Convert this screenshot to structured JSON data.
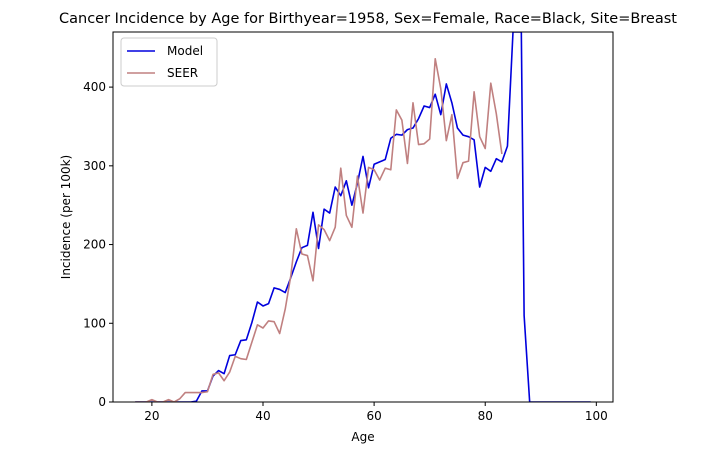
{
  "chart_data": {
    "type": "line",
    "title": "Cancer Incidence by Age for Birthyear=1958, Sex=Female, Race=Black, Site=Breast",
    "xlabel": "Age",
    "ylabel": "Incidence (per 100k)",
    "xlim": [
      13,
      103
    ],
    "ylim": [
      0,
      470
    ],
    "xticks": [
      20,
      40,
      60,
      80,
      100
    ],
    "yticks": [
      0,
      100,
      200,
      300,
      400
    ],
    "grid": false,
    "legend": "top-left",
    "series": [
      {
        "name": "Model",
        "color": "#0000dd",
        "x": [
          17,
          18,
          19,
          20,
          21,
          22,
          23,
          24,
          25,
          26,
          27,
          28,
          29,
          30,
          31,
          32,
          33,
          34,
          35,
          36,
          37,
          38,
          39,
          40,
          41,
          42,
          43,
          44,
          45,
          46,
          47,
          48,
          49,
          50,
          51,
          52,
          53,
          54,
          55,
          56,
          57,
          58,
          59,
          60,
          61,
          62,
          63,
          64,
          65,
          66,
          67,
          68,
          69,
          70,
          71,
          72,
          73,
          74,
          75,
          76,
          77,
          78,
          79,
          80,
          81,
          82,
          83,
          84,
          85,
          85.5,
          86,
          86.5,
          87,
          88,
          89,
          90,
          91,
          92,
          93,
          94,
          95,
          96,
          97,
          98,
          99
        ],
        "values": [
          0,
          0,
          0,
          0,
          0,
          0,
          0,
          0,
          0,
          0,
          0,
          1,
          14,
          14,
          33,
          40,
          36,
          59,
          60,
          78,
          79,
          101,
          127,
          122,
          125,
          145,
          143,
          139,
          158,
          178,
          196,
          199,
          241,
          195,
          245,
          240,
          273,
          262,
          281,
          250,
          278,
          312,
          272,
          302,
          305,
          308,
          335,
          340,
          339,
          346,
          348,
          360,
          376,
          374,
          391,
          365,
          404,
          380,
          348,
          339,
          337,
          333,
          273,
          298,
          293,
          309,
          305,
          325,
          470,
          470,
          470,
          470,
          110,
          0,
          0,
          0,
          0,
          0,
          0,
          0,
          0,
          0,
          0,
          0,
          0
        ]
      },
      {
        "name": "SEER",
        "color": "#c08080",
        "x": [
          17,
          18,
          19,
          20,
          21,
          22,
          23,
          24,
          25,
          26,
          27,
          28,
          29,
          30,
          31,
          32,
          33,
          34,
          35,
          36,
          37,
          38,
          39,
          40,
          41,
          42,
          43,
          44,
          45,
          46,
          47,
          48,
          49,
          50,
          51,
          52,
          53,
          54,
          55,
          56,
          57,
          58,
          59,
          60,
          61,
          62,
          63,
          64,
          65,
          66,
          67,
          68,
          69,
          70,
          71,
          72,
          73,
          74,
          75,
          76,
          77,
          78,
          79,
          80,
          81,
          82,
          83
        ],
        "values": [
          0,
          0,
          0,
          3,
          0,
          0,
          3,
          0,
          4,
          12,
          12,
          12,
          12,
          13,
          35,
          37,
          27,
          38,
          58,
          55,
          54,
          76,
          98,
          94,
          103,
          102,
          87,
          118,
          160,
          220,
          188,
          186,
          154,
          225,
          219,
          205,
          222,
          297,
          237,
          222,
          287,
          240,
          298,
          295,
          282,
          297,
          295,
          371,
          358,
          303,
          380,
          327,
          328,
          334,
          436,
          398,
          332,
          365,
          284,
          304,
          306,
          394,
          337,
          322,
          405,
          366,
          315
        ]
      }
    ]
  }
}
